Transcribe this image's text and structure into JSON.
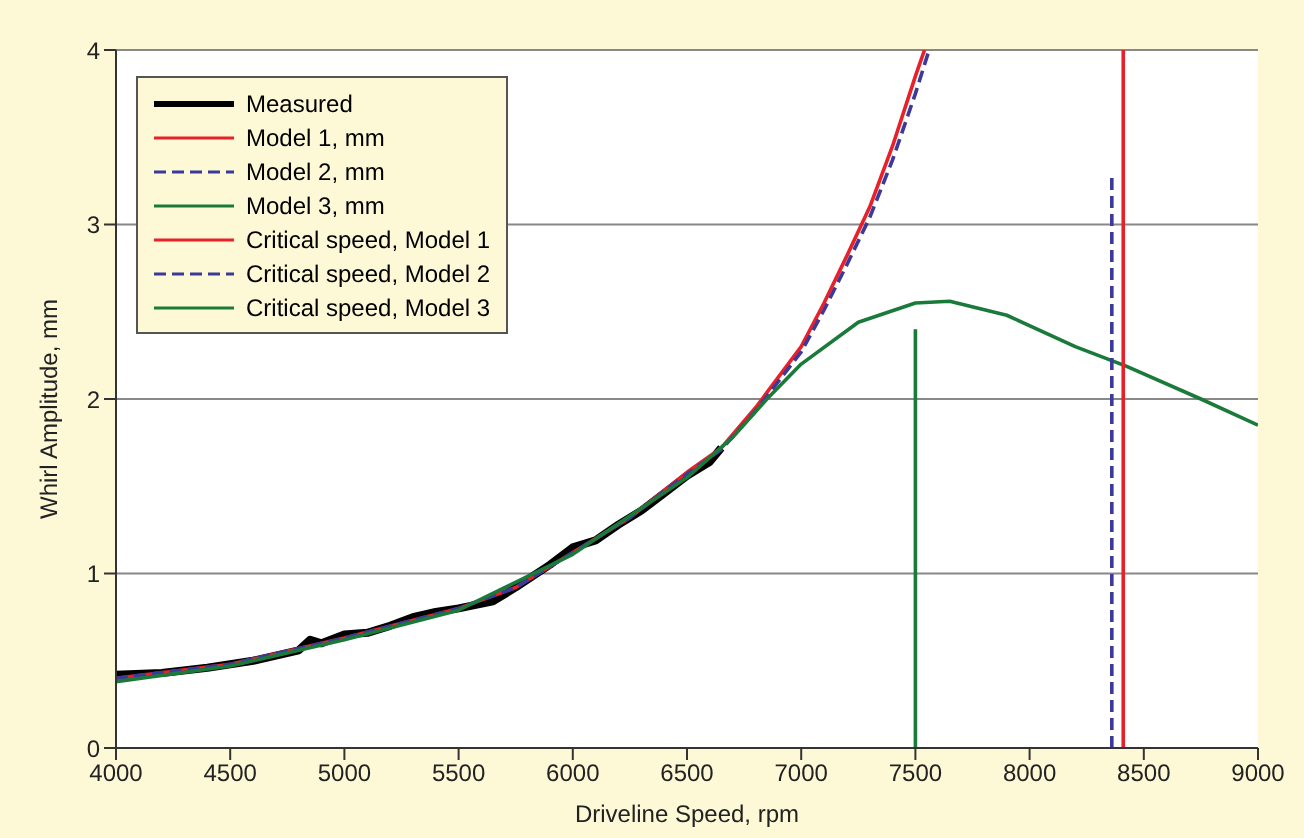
{
  "chart_data": {
    "type": "line",
    "xlabel": "Driveline Speed, rpm",
    "ylabel": "Whirl Amplitude, mm",
    "xlim": [
      4000,
      9000
    ],
    "xticks": [
      4000,
      4500,
      5000,
      5500,
      6000,
      6500,
      7000,
      7500,
      8000,
      8500,
      9000
    ],
    "ylim": [
      0,
      4
    ],
    "yticks": [
      0,
      1,
      2,
      3,
      4
    ],
    "grid": "y",
    "legend": "top left",
    "marker": "none",
    "series": [
      {
        "name": "Measured",
        "color": "#000000",
        "x": [
          4000,
          4200,
          4400,
          4600,
          4800,
          4850,
          4900,
          5000,
          5100,
          5200,
          5300,
          5400,
          5500,
          5650,
          5750,
          5900,
          6000,
          6100,
          6200,
          6300,
          6400,
          6500,
          6600,
          6650
        ],
        "values": [
          0.42,
          0.43,
          0.46,
          0.5,
          0.56,
          0.62,
          0.6,
          0.65,
          0.66,
          0.7,
          0.75,
          0.78,
          0.8,
          0.84,
          0.92,
          1.05,
          1.15,
          1.19,
          1.28,
          1.36,
          1.46,
          1.56,
          1.64,
          1.72
        ]
      },
      {
        "name": "Model 1, mm",
        "color": "#e8202a",
        "x": [
          4000,
          4500,
          5000,
          5500,
          5750,
          6000,
          6250,
          6500,
          6650,
          6800,
          7000,
          7100,
          7200,
          7300,
          7400,
          7500,
          7540
        ],
        "values": [
          0.4,
          0.48,
          0.63,
          0.8,
          0.92,
          1.12,
          1.32,
          1.58,
          1.72,
          1.95,
          2.3,
          2.55,
          2.82,
          3.1,
          3.45,
          3.85,
          4
        ]
      },
      {
        "name": "Model 2, mm",
        "color": "#3b3a9a",
        "line_style": "dashed",
        "x": [
          4000,
          4500,
          5000,
          5500,
          5750,
          6000,
          6250,
          6500,
          6650,
          6800,
          7000,
          7100,
          7200,
          7300,
          7400,
          7500,
          7560
        ],
        "values": [
          0.4,
          0.48,
          0.63,
          0.8,
          0.92,
          1.12,
          1.32,
          1.57,
          1.71,
          1.93,
          2.27,
          2.51,
          2.77,
          3.04,
          3.37,
          3.75,
          4
        ]
      },
      {
        "name": "Model 3, mm",
        "color": "#1a7a3a",
        "x": [
          4000,
          4500,
          5000,
          5500,
          6000,
          6500,
          6700,
          6850,
          7000,
          7250,
          7500,
          7650,
          7900,
          8200,
          8420,
          8750,
          9000
        ],
        "values": [
          0.38,
          0.47,
          0.62,
          0.79,
          1.11,
          1.55,
          1.78,
          2,
          2.2,
          2.44,
          2.55,
          2.56,
          2.48,
          2.3,
          2.19,
          2,
          1.85
        ]
      },
      {
        "name": "Critical speed, Model 1",
        "color": "#e8202a",
        "x": [
          8410,
          8410
        ],
        "values": [
          0,
          4
        ]
      },
      {
        "name": "Critical speed, Model 2",
        "color": "#3b3a9a",
        "line_style": "dashed",
        "x": [
          8360,
          8360
        ],
        "values": [
          0,
          3.3
        ]
      },
      {
        "name": "Critical speed, Model 3",
        "color": "#1a7a3a",
        "x": [
          7500,
          7500
        ],
        "values": [
          0,
          2.4
        ]
      }
    ]
  }
}
